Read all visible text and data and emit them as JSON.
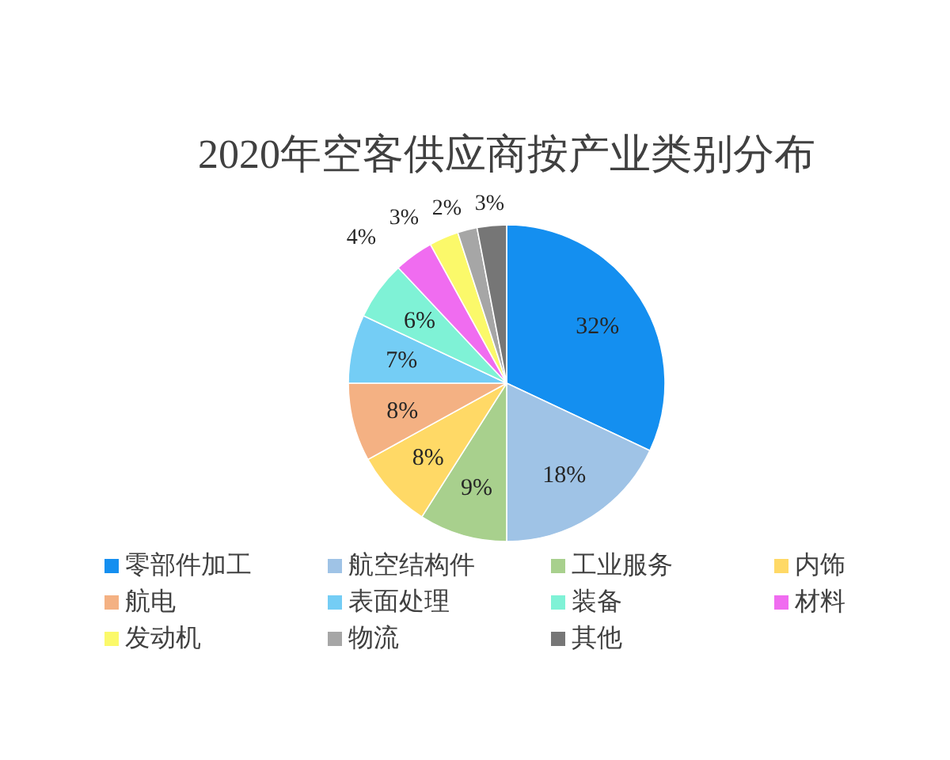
{
  "chart_data": {
    "type": "pie",
    "title": "2020年空客供应商按产业类别分布",
    "categories": [
      "零部件加工",
      "航空结构件",
      "工业服务",
      "内饰",
      "航电",
      "表面处理",
      "装备",
      "材料",
      "发动机",
      "物流",
      "其他"
    ],
    "values": [
      32,
      18,
      9,
      8,
      8,
      7,
      6,
      4,
      3,
      2,
      3
    ],
    "value_labels": [
      "32%",
      "18%",
      "9%",
      "8%",
      "8%",
      "7%",
      "6%",
      "4%",
      "3%",
      "2%",
      "3%"
    ],
    "colors": [
      "#148ff0",
      "#9fc3e6",
      "#a8d08d",
      "#ffd966",
      "#f4b183",
      "#74cdf5",
      "#7ff2d6",
      "#f06cf0",
      "#fbf96a",
      "#a6a6a6",
      "#767676"
    ],
    "legend": "bottom"
  }
}
